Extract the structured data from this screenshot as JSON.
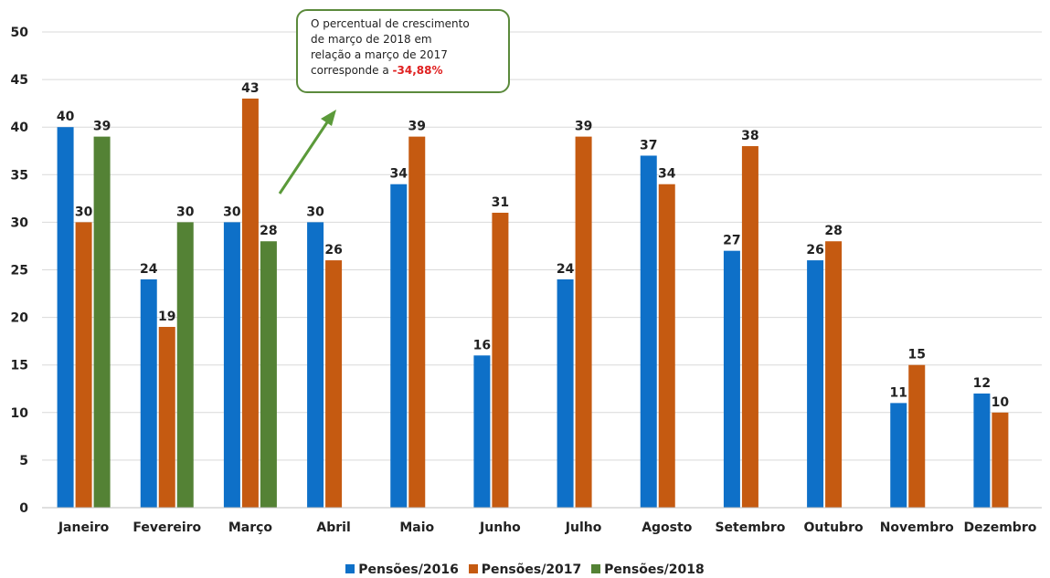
{
  "chart_data": {
    "type": "bar",
    "categories": [
      "Janeiro",
      "Fevereiro",
      "Março",
      "Abril",
      "Maio",
      "Junho",
      "Julho",
      "Agosto",
      "Setembro",
      "Outubro",
      "Novembro",
      "Dezembro"
    ],
    "series": [
      {
        "name": "Pensões/2016",
        "color": "#0e70c8",
        "values": [
          40,
          24,
          30,
          30,
          34,
          16,
          24,
          37,
          27,
          26,
          11,
          12
        ]
      },
      {
        "name": "Pensões/2017",
        "color": "#c55a11",
        "values": [
          30,
          19,
          43,
          26,
          39,
          31,
          39,
          34,
          38,
          28,
          15,
          10
        ]
      },
      {
        "name": "Pensões/2018",
        "color": "#548235",
        "values": [
          39,
          30,
          28,
          null,
          null,
          null,
          null,
          null,
          null,
          null,
          null,
          null
        ]
      }
    ],
    "ylim": [
      0,
      50
    ],
    "yticks": [
      0,
      5,
      10,
      15,
      20,
      25,
      30,
      35,
      40,
      45,
      50
    ],
    "grid": true,
    "legend_position": "bottom",
    "annotation": {
      "lines": [
        "O percentual  de crescimento",
        "de março de 2018 em",
        "relação a março de 2017"
      ],
      "prefix": "corresponde a ",
      "highlight": "-34,88%",
      "highlight_color": "#e02020"
    }
  }
}
